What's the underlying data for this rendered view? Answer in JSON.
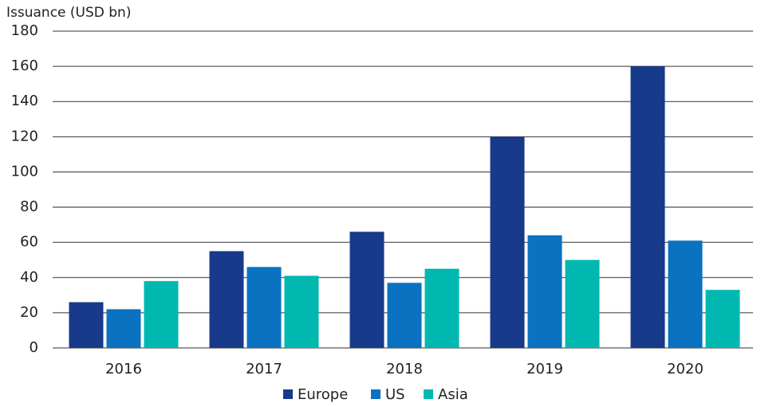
{
  "chart_data": {
    "type": "bar",
    "y_axis_label": "Issuance (USD bn)",
    "categories": [
      "2016",
      "2017",
      "2018",
      "2019",
      "2020"
    ],
    "series": [
      {
        "name": "Europe",
        "color": "#173a8b",
        "values": [
          26,
          55,
          66,
          120,
          160
        ]
      },
      {
        "name": "US",
        "color": "#0a72c0",
        "values": [
          22,
          46,
          37,
          64,
          61
        ]
      },
      {
        "name": "Asia",
        "color": "#00b8b0",
        "values": [
          38,
          41,
          45,
          50,
          33
        ]
      }
    ],
    "ylim": [
      0,
      180
    ],
    "yticks": [
      0,
      20,
      40,
      60,
      80,
      100,
      120,
      140,
      160,
      180
    ],
    "grid": true,
    "legend": "bottom"
  }
}
